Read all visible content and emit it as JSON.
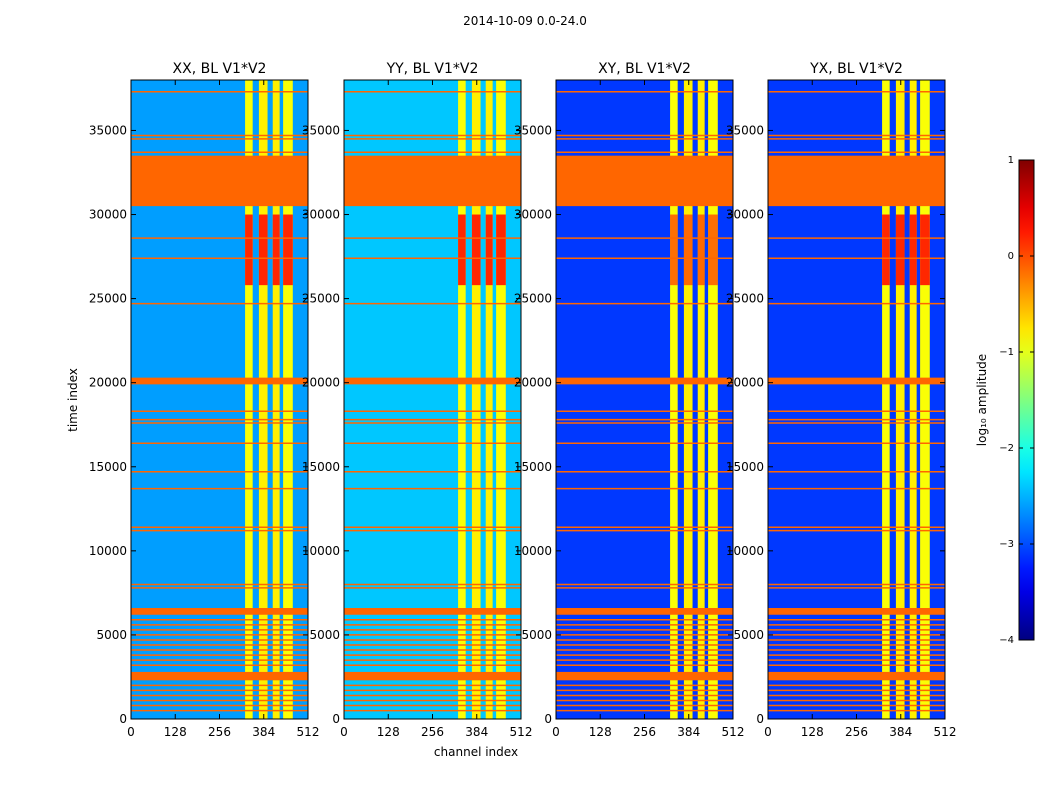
{
  "chart_data": {
    "type": "heatmap",
    "suptitle": "2014-10-09 0.0-24.0",
    "xlabel": "channel index",
    "ylabel": "time index",
    "xlim": [
      0,
      512
    ],
    "ylim": [
      0,
      38000
    ],
    "xticks": [
      0,
      128,
      256,
      384,
      512
    ],
    "yticks": [
      0,
      5000,
      10000,
      15000,
      20000,
      25000,
      30000,
      35000
    ],
    "panels": [
      {
        "title": "XX, BL V1*V2",
        "pol": "XX"
      },
      {
        "title": "YY, BL V1*V2",
        "pol": "YY"
      },
      {
        "title": "XY, BL V1*V2",
        "pol": "XY"
      },
      {
        "title": "YX, BL V1*V2",
        "pol": "YX"
      }
    ],
    "colorbar": {
      "label": "log₁₀ amplitude",
      "range": [
        -4,
        1
      ],
      "ticks": [
        1,
        0,
        -1,
        -2,
        -3,
        -4
      ],
      "tick_labels": [
        "1",
        "0",
        "−1",
        "−2",
        "−3",
        "−4"
      ],
      "colormap": "jet"
    },
    "flag_color": "#ff6600",
    "flagged_time_ranges": [
      [
        30500,
        33500
      ],
      [
        19900,
        20300
      ],
      [
        6200,
        6600
      ],
      [
        2300,
        2800
      ]
    ],
    "flagged_time_lines": [
      37300,
      34700,
      34500,
      33700,
      28600,
      27400,
      24700,
      18300,
      17800,
      17600,
      16400,
      14700,
      13700,
      11400,
      11200,
      8000,
      7800,
      5900,
      5600,
      5300,
      5000,
      4700,
      4400,
      4100,
      3800,
      3500,
      3200,
      2000,
      1700,
      1400,
      1100,
      800,
      500
    ],
    "signal_channel_bands": [
      {
        "channel_range": [
          330,
          352
        ],
        "log_amplitude": -0.9
      },
      {
        "channel_range": [
          370,
          395
        ],
        "log_amplitude": -0.8
      },
      {
        "channel_range": [
          410,
          430
        ],
        "log_amplitude": -0.8
      },
      {
        "channel_range": [
          440,
          468
        ],
        "log_amplitude": -0.9
      }
    ],
    "background_log_amplitude": {
      "XX": -2.6,
      "YY": -2.4,
      "XY": -3.1,
      "YX": -3.1
    },
    "hot_region": {
      "time_range": [
        25800,
        30000
      ],
      "log_amplitude": 0.3
    }
  }
}
